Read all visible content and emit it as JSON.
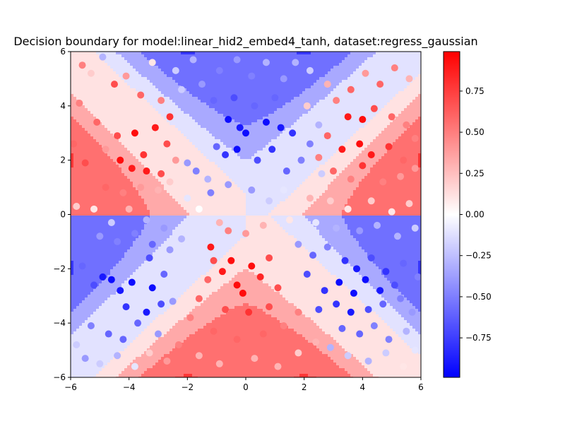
{
  "chart_data": {
    "type": "contour-scatter",
    "title": "Decision boundary for model:linear_hid2_embed4_tanh, dataset:regress_gaussian",
    "xlabel": "",
    "ylabel": "",
    "xlim": [
      -6,
      6
    ],
    "ylim": [
      -6,
      6
    ],
    "x_ticks": [
      -6,
      -4,
      -2,
      0,
      2,
      4,
      6
    ],
    "y_ticks": [
      -6,
      -4,
      -2,
      0,
      2,
      4,
      6
    ],
    "grid": false,
    "colormap": "bwr",
    "colormap_stops": [
      "#0000ff",
      "#ffffff",
      "#ff0000"
    ],
    "colorbar": {
      "range": [
        -0.99,
        0.99
      ],
      "ticks": [
        -0.75,
        -0.5,
        -0.25,
        0.0,
        0.25,
        0.5,
        0.75
      ],
      "tick_labels": [
        "−0.75",
        "−0.50",
        "−0.25",
        "0.00",
        "0.25",
        "0.50",
        "0.75"
      ]
    },
    "contour_levels": [
      -0.75,
      -0.5,
      -0.25,
      0,
      0.25,
      0.5,
      0.75
    ],
    "contour_function": "value tends toward sign(x*y) away from axes, bands of levels",
    "points": [
      {
        "x": -5.6,
        "y": 5.5,
        "v": 0.5
      },
      {
        "x": -5.3,
        "y": 5.2,
        "v": 0.2
      },
      {
        "x": -4.9,
        "y": 5.8,
        "v": -0.3
      },
      {
        "x": -4.5,
        "y": 4.8,
        "v": 0.7
      },
      {
        "x": -4.1,
        "y": 5.1,
        "v": 0.4
      },
      {
        "x": -3.6,
        "y": 4.4,
        "v": 0.6
      },
      {
        "x": -3.2,
        "y": 5.6,
        "v": 0.1
      },
      {
        "x": -2.9,
        "y": 4.2,
        "v": 0.5
      },
      {
        "x": -2.6,
        "y": 3.6,
        "v": 0.8
      },
      {
        "x": -2.2,
        "y": 4.6,
        "v": -0.2
      },
      {
        "x": -5.7,
        "y": 4.1,
        "v": 0.5
      },
      {
        "x": -5.1,
        "y": 3.4,
        "v": 0.6
      },
      {
        "x": -4.8,
        "y": 2.4,
        "v": 0.4
      },
      {
        "x": -4.4,
        "y": 2.9,
        "v": 0.7
      },
      {
        "x": -3.8,
        "y": 3.0,
        "v": 0.95
      },
      {
        "x": -3.5,
        "y": 2.2,
        "v": 0.8
      },
      {
        "x": -3.1,
        "y": 3.2,
        "v": 0.9
      },
      {
        "x": -2.7,
        "y": 2.6,
        "v": 0.7
      },
      {
        "x": -2.4,
        "y": 2.0,
        "v": 0.4
      },
      {
        "x": -2.0,
        "y": 1.9,
        "v": -0.4
      },
      {
        "x": -1.7,
        "y": 1.6,
        "v": -0.5
      },
      {
        "x": -5.9,
        "y": 2.6,
        "v": 0.6
      },
      {
        "x": -5.5,
        "y": 1.9,
        "v": 0.7
      },
      {
        "x": -4.3,
        "y": 2.0,
        "v": 0.95
      },
      {
        "x": -3.9,
        "y": 1.7,
        "v": 0.9
      },
      {
        "x": -3.4,
        "y": 1.6,
        "v": 0.9
      },
      {
        "x": -2.9,
        "y": 1.5,
        "v": 0.7
      },
      {
        "x": -4.8,
        "y": 1.0,
        "v": 0.6
      },
      {
        "x": -4.2,
        "y": 0.8,
        "v": 0.5
      },
      {
        "x": -3.6,
        "y": 1.0,
        "v": 0.4
      },
      {
        "x": -3.0,
        "y": 0.9,
        "v": 0.3
      },
      {
        "x": -2.6,
        "y": 1.2,
        "v": 0.2
      },
      {
        "x": -2.0,
        "y": 0.6,
        "v": -0.1
      },
      {
        "x": -5.8,
        "y": 0.3,
        "v": 0.2
      },
      {
        "x": -5.2,
        "y": 0.2,
        "v": 0.1
      },
      {
        "x": -4.6,
        "y": -0.3,
        "v": -0.2
      },
      {
        "x": -4.0,
        "y": 0.2,
        "v": 0.3
      },
      {
        "x": -3.4,
        "y": -0.2,
        "v": -0.3
      },
      {
        "x": -2.8,
        "y": -0.5,
        "v": -0.4
      },
      {
        "x": -5.0,
        "y": -0.8,
        "v": -0.4
      },
      {
        "x": -4.4,
        "y": -1.0,
        "v": -0.5
      },
      {
        "x": -3.8,
        "y": -0.7,
        "v": -0.5
      },
      {
        "x": -3.2,
        "y": -1.1,
        "v": -0.6
      },
      {
        "x": -2.6,
        "y": -1.3,
        "v": -0.4
      },
      {
        "x": -2.2,
        "y": -0.9,
        "v": -0.3
      },
      {
        "x": -5.6,
        "y": -1.9,
        "v": -0.6
      },
      {
        "x": -5.2,
        "y": -2.6,
        "v": -0.7
      },
      {
        "x": -4.9,
        "y": -2.3,
        "v": -0.9
      },
      {
        "x": -4.6,
        "y": -2.4,
        "v": -0.95
      },
      {
        "x": -4.3,
        "y": -2.8,
        "v": -0.9
      },
      {
        "x": -3.9,
        "y": -2.5,
        "v": -0.95
      },
      {
        "x": -3.3,
        "y": -1.6,
        "v": -0.7
      },
      {
        "x": -3.2,
        "y": -2.7,
        "v": -0.95
      },
      {
        "x": -2.8,
        "y": -2.2,
        "v": -0.6
      },
      {
        "x": -2.5,
        "y": -3.2,
        "v": -0.4
      },
      {
        "x": -4.1,
        "y": -3.4,
        "v": -0.8
      },
      {
        "x": -3.4,
        "y": -3.6,
        "v": -0.9
      },
      {
        "x": -2.9,
        "y": -3.3,
        "v": -0.7
      },
      {
        "x": -5.3,
        "y": -4.1,
        "v": -0.5
      },
      {
        "x": -4.7,
        "y": -4.4,
        "v": -0.6
      },
      {
        "x": -4.2,
        "y": -4.6,
        "v": -0.6
      },
      {
        "x": -3.7,
        "y": -4.0,
        "v": -0.6
      },
      {
        "x": -3.0,
        "y": -4.4,
        "v": -0.4
      },
      {
        "x": -5.8,
        "y": -4.8,
        "v": -0.2
      },
      {
        "x": -5.5,
        "y": -5.3,
        "v": -0.4
      },
      {
        "x": -5.0,
        "y": -5.5,
        "v": -0.2
      },
      {
        "x": -4.4,
        "y": -5.2,
        "v": -0.3
      },
      {
        "x": -3.8,
        "y": -5.6,
        "v": -0.1
      },
      {
        "x": -3.3,
        "y": -5.1,
        "v": 0.2
      },
      {
        "x": -2.7,
        "y": -5.4,
        "v": 0.4
      },
      {
        "x": -2.3,
        "y": -4.8,
        "v": 0.5
      },
      {
        "x": -1.9,
        "y": -3.8,
        "v": 0.5
      },
      {
        "x": -1.6,
        "y": -3.1,
        "v": 0.6
      },
      {
        "x": -1.3,
        "y": -2.4,
        "v": 0.6
      },
      {
        "x": -1.1,
        "y": -1.7,
        "v": 0.7
      },
      {
        "x": -1.2,
        "y": -1.2,
        "v": 0.9
      },
      {
        "x": -0.8,
        "y": -2.1,
        "v": 0.9
      },
      {
        "x": -0.5,
        "y": -1.7,
        "v": 0.95
      },
      {
        "x": -0.3,
        "y": -2.6,
        "v": 0.95
      },
      {
        "x": -0.1,
        "y": -2.9,
        "v": 0.95
      },
      {
        "x": 0.2,
        "y": -1.9,
        "v": 0.95
      },
      {
        "x": 0.5,
        "y": -2.3,
        "v": 0.85
      },
      {
        "x": 0.8,
        "y": -1.6,
        "v": 0.7
      },
      {
        "x": 1.1,
        "y": -2.7,
        "v": 0.7
      },
      {
        "x": -0.7,
        "y": -3.5,
        "v": 0.7
      },
      {
        "x": 0.1,
        "y": -3.6,
        "v": 0.8
      },
      {
        "x": 0.8,
        "y": -3.4,
        "v": 0.7
      },
      {
        "x": -1.1,
        "y": -4.3,
        "v": 0.6
      },
      {
        "x": -0.3,
        "y": -4.6,
        "v": 0.6
      },
      {
        "x": 0.6,
        "y": -4.4,
        "v": 0.6
      },
      {
        "x": 1.3,
        "y": -4.1,
        "v": 0.5
      },
      {
        "x": 1.8,
        "y": -3.6,
        "v": 0.5
      },
      {
        "x": -1.6,
        "y": -5.2,
        "v": 0.3
      },
      {
        "x": -0.9,
        "y": -5.5,
        "v": 0.3
      },
      {
        "x": 0.3,
        "y": -5.3,
        "v": 0.3
      },
      {
        "x": 1.1,
        "y": -5.6,
        "v": 0.3
      },
      {
        "x": 1.8,
        "y": -5.1,
        "v": 0.2
      },
      {
        "x": 2.4,
        "y": -4.7,
        "v": 0.3
      },
      {
        "x": -0.6,
        "y": -0.6,
        "v": 0.5
      },
      {
        "x": 0.0,
        "y": -0.7,
        "v": 0.4
      },
      {
        "x": 0.6,
        "y": -0.4,
        "v": 0.3
      },
      {
        "x": -0.9,
        "y": -0.3,
        "v": 0.3
      },
      {
        "x": -2.4,
        "y": 5.3,
        "v": -0.2
      },
      {
        "x": -1.8,
        "y": 5.7,
        "v": -0.3
      },
      {
        "x": -1.5,
        "y": 4.8,
        "v": -0.4
      },
      {
        "x": -0.9,
        "y": 5.3,
        "v": -0.5
      },
      {
        "x": -0.3,
        "y": 5.7,
        "v": -0.4
      },
      {
        "x": 0.2,
        "y": 5.1,
        "v": -0.5
      },
      {
        "x": 0.7,
        "y": 5.6,
        "v": -0.3
      },
      {
        "x": 1.3,
        "y": 5.0,
        "v": -0.4
      },
      {
        "x": 1.7,
        "y": 5.6,
        "v": -0.3
      },
      {
        "x": 2.2,
        "y": 5.3,
        "v": -0.2
      },
      {
        "x": -1.1,
        "y": 4.2,
        "v": -0.6
      },
      {
        "x": -0.4,
        "y": 4.3,
        "v": -0.7
      },
      {
        "x": 0.3,
        "y": 4.0,
        "v": -0.6
      },
      {
        "x": 1.0,
        "y": 4.3,
        "v": -0.6
      },
      {
        "x": -0.6,
        "y": 3.5,
        "v": -0.95
      },
      {
        "x": -0.2,
        "y": 3.2,
        "v": -0.9
      },
      {
        "x": 0.0,
        "y": 3.0,
        "v": -0.95
      },
      {
        "x": 0.7,
        "y": 3.4,
        "v": -0.95
      },
      {
        "x": 1.2,
        "y": 3.2,
        "v": -0.9
      },
      {
        "x": 1.6,
        "y": 3.0,
        "v": -0.8
      },
      {
        "x": -1.0,
        "y": 2.5,
        "v": -0.6
      },
      {
        "x": -0.7,
        "y": 2.2,
        "v": -0.8
      },
      {
        "x": -0.3,
        "y": 2.4,
        "v": -0.95
      },
      {
        "x": 0.4,
        "y": 2.0,
        "v": -0.7
      },
      {
        "x": 0.9,
        "y": 2.4,
        "v": -0.8
      },
      {
        "x": 1.4,
        "y": 1.6,
        "v": -0.6
      },
      {
        "x": 1.9,
        "y": 2.0,
        "v": -0.5
      },
      {
        "x": 2.2,
        "y": 2.6,
        "v": -0.5
      },
      {
        "x": 2.5,
        "y": 3.3,
        "v": -0.3
      },
      {
        "x": -1.3,
        "y": 1.3,
        "v": -0.3
      },
      {
        "x": -1.2,
        "y": 0.8,
        "v": -0.5
      },
      {
        "x": -0.6,
        "y": 1.1,
        "v": -0.4
      },
      {
        "x": 0.2,
        "y": 0.9,
        "v": -0.4
      },
      {
        "x": 0.8,
        "y": 0.5,
        "v": -0.2
      },
      {
        "x": 1.3,
        "y": 0.9,
        "v": -0.1
      },
      {
        "x": 2.6,
        "y": 1.5,
        "v": -0.2
      },
      {
        "x": 2.1,
        "y": 4.0,
        "v": 0.2
      },
      {
        "x": 2.8,
        "y": 4.8,
        "v": 0.3
      },
      {
        "x": 3.1,
        "y": 4.2,
        "v": 0.5
      },
      {
        "x": 3.6,
        "y": 4.6,
        "v": 0.6
      },
      {
        "x": 4.1,
        "y": 5.2,
        "v": 0.4
      },
      {
        "x": 4.6,
        "y": 4.8,
        "v": 0.6
      },
      {
        "x": 5.1,
        "y": 5.4,
        "v": 0.5
      },
      {
        "x": 5.6,
        "y": 5.0,
        "v": 0.3
      },
      {
        "x": 3.5,
        "y": 3.6,
        "v": 0.9
      },
      {
        "x": 4.0,
        "y": 3.5,
        "v": 0.95
      },
      {
        "x": 4.4,
        "y": 3.9,
        "v": 0.7
      },
      {
        "x": 5.0,
        "y": 3.6,
        "v": 0.6
      },
      {
        "x": 5.5,
        "y": 3.3,
        "v": 0.5
      },
      {
        "x": 2.8,
        "y": 2.9,
        "v": 0.6
      },
      {
        "x": 3.3,
        "y": 2.4,
        "v": 0.9
      },
      {
        "x": 3.9,
        "y": 2.6,
        "v": 0.95
      },
      {
        "x": 4.3,
        "y": 2.2,
        "v": 0.9
      },
      {
        "x": 4.9,
        "y": 2.5,
        "v": 0.8
      },
      {
        "x": 5.4,
        "y": 2.0,
        "v": 0.6
      },
      {
        "x": 5.8,
        "y": 2.8,
        "v": 0.5
      },
      {
        "x": 2.5,
        "y": 2.1,
        "v": 0.5
      },
      {
        "x": 3.0,
        "y": 1.6,
        "v": 0.6
      },
      {
        "x": 3.6,
        "y": 1.3,
        "v": 0.5
      },
      {
        "x": 4.0,
        "y": 1.8,
        "v": 0.8
      },
      {
        "x": 4.7,
        "y": 1.2,
        "v": 0.5
      },
      {
        "x": 5.3,
        "y": 1.4,
        "v": 0.4
      },
      {
        "x": 5.8,
        "y": 1.7,
        "v": 0.4
      },
      {
        "x": 2.2,
        "y": 0.6,
        "v": 0.3
      },
      {
        "x": 2.9,
        "y": 0.5,
        "v": 0.2
      },
      {
        "x": 3.5,
        "y": 0.2,
        "v": 0.1
      },
      {
        "x": 4.3,
        "y": 0.5,
        "v": 0.2
      },
      {
        "x": 5.0,
        "y": 0.1,
        "v": 0.1
      },
      {
        "x": 5.6,
        "y": 0.4,
        "v": 0.2
      },
      {
        "x": 2.4,
        "y": -0.3,
        "v": -0.1
      },
      {
        "x": 3.1,
        "y": -0.5,
        "v": -0.3
      },
      {
        "x": 3.9,
        "y": -0.6,
        "v": -0.4
      },
      {
        "x": 4.5,
        "y": -0.4,
        "v": -0.3
      },
      {
        "x": 5.2,
        "y": -0.8,
        "v": -0.3
      },
      {
        "x": 5.8,
        "y": -0.5,
        "v": -0.2
      },
      {
        "x": 1.8,
        "y": -1.1,
        "v": -0.4
      },
      {
        "x": 2.3,
        "y": -1.5,
        "v": -0.6
      },
      {
        "x": 2.8,
        "y": -1.2,
        "v": -0.5
      },
      {
        "x": 3.4,
        "y": -1.7,
        "v": -0.8
      },
      {
        "x": 3.8,
        "y": -2.0,
        "v": -0.9
      },
      {
        "x": 4.3,
        "y": -1.6,
        "v": -0.7
      },
      {
        "x": 4.8,
        "y": -2.1,
        "v": -0.8
      },
      {
        "x": 5.4,
        "y": -1.8,
        "v": -0.6
      },
      {
        "x": 5.9,
        "y": -2.3,
        "v": -0.5
      },
      {
        "x": 2.1,
        "y": -2.2,
        "v": -0.7
      },
      {
        "x": 2.7,
        "y": -2.8,
        "v": -0.8
      },
      {
        "x": 3.2,
        "y": -2.5,
        "v": -0.95
      },
      {
        "x": 3.7,
        "y": -2.9,
        "v": -0.95
      },
      {
        "x": 4.1,
        "y": -2.4,
        "v": -0.95
      },
      {
        "x": 4.6,
        "y": -2.8,
        "v": -0.9
      },
      {
        "x": 5.1,
        "y": -2.6,
        "v": -0.7
      },
      {
        "x": 2.5,
        "y": -3.5,
        "v": -0.7
      },
      {
        "x": 3.1,
        "y": -3.3,
        "v": -0.8
      },
      {
        "x": 3.6,
        "y": -3.6,
        "v": -0.9
      },
      {
        "x": 4.2,
        "y": -3.5,
        "v": -0.7
      },
      {
        "x": 4.7,
        "y": -3.3,
        "v": -0.6
      },
      {
        "x": 5.3,
        "y": -3.1,
        "v": -0.5
      },
      {
        "x": 5.7,
        "y": -3.6,
        "v": -0.4
      },
      {
        "x": 3.3,
        "y": -4.2,
        "v": -0.6
      },
      {
        "x": 3.9,
        "y": -4.4,
        "v": -0.6
      },
      {
        "x": 4.4,
        "y": -4.1,
        "v": -0.5
      },
      {
        "x": 4.9,
        "y": -4.6,
        "v": -0.5
      },
      {
        "x": 5.5,
        "y": -4.3,
        "v": -0.3
      },
      {
        "x": 2.9,
        "y": -4.9,
        "v": -0.3
      },
      {
        "x": 3.5,
        "y": -5.2,
        "v": -0.2
      },
      {
        "x": 4.2,
        "y": -5.4,
        "v": -0.3
      },
      {
        "x": 4.8,
        "y": -5.1,
        "v": -0.2
      },
      {
        "x": 5.4,
        "y": -5.6,
        "v": 0.1
      },
      {
        "x": 5.8,
        "y": -5.0,
        "v": -0.1
      },
      {
        "x": 1.5,
        "y": -0.2,
        "v": 0.1
      },
      {
        "x": -1.6,
        "y": 0.2,
        "v": 0.0
      }
    ]
  }
}
